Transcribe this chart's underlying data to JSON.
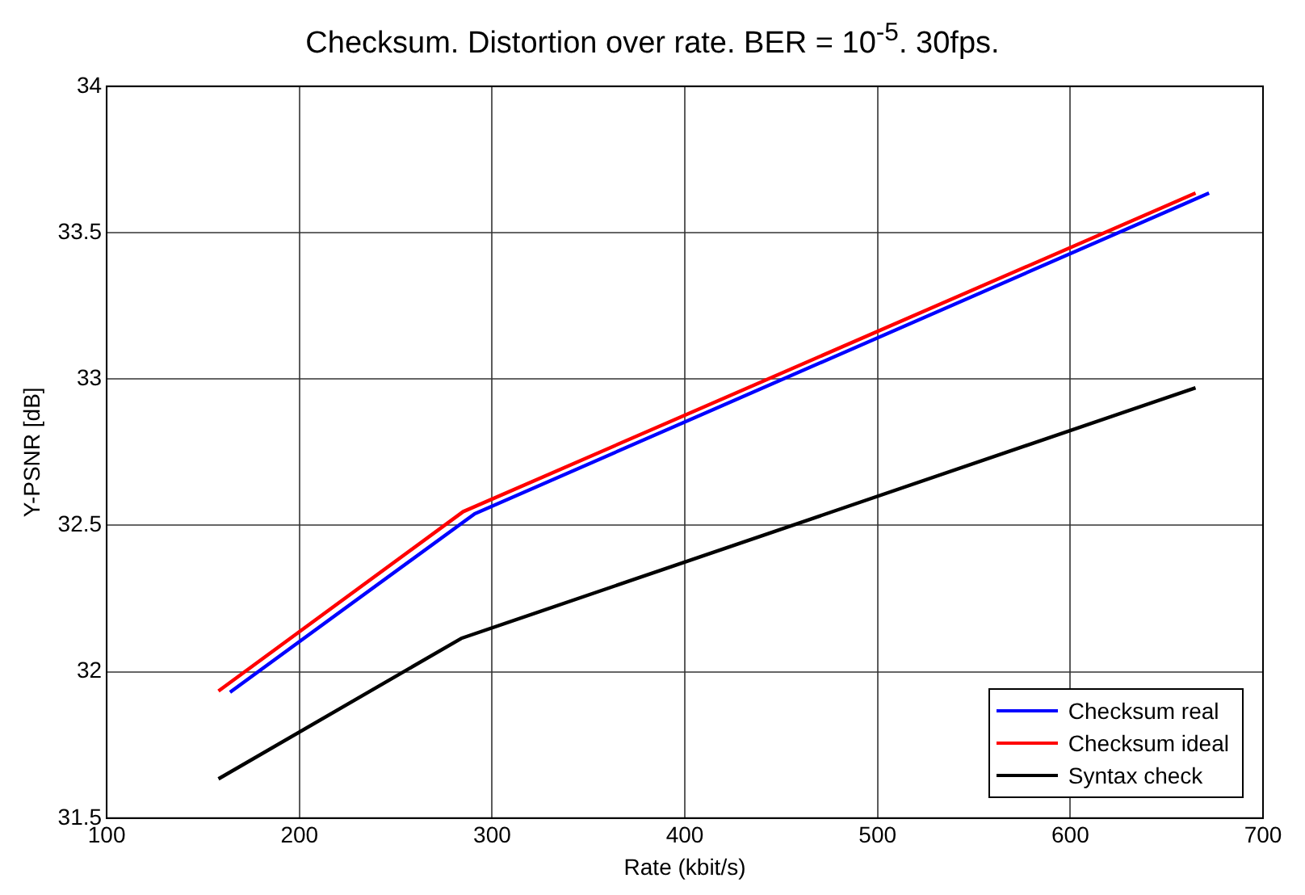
{
  "chart_data": {
    "type": "line",
    "title": "Checksum. Distortion over rate. BER = 10$^{-5}$. 30fps.",
    "xlabel": "Rate (kbit/s)",
    "ylabel": "Y-PSNR [dB]",
    "series": [
      {
        "name": "Checksum real",
        "color": "#0000ff",
        "x": [
          164,
          291,
          672
        ],
        "values": [
          31.93,
          32.54,
          33.635
        ]
      },
      {
        "name": "Checksum ideal",
        "color": "#ff0000",
        "x": [
          158,
          285,
          665
        ],
        "values": [
          31.934,
          32.547,
          33.635
        ]
      },
      {
        "name": "Syntax check",
        "color": "#000000",
        "x": [
          158,
          284,
          665
        ],
        "values": [
          31.634,
          32.114,
          32.97
        ]
      }
    ],
    "xlim": [
      100,
      700
    ],
    "xticks": [
      100,
      200,
      300,
      400,
      500,
      600,
      700
    ],
    "ylim": [
      31.5,
      34
    ],
    "yticks": [
      31.5,
      32,
      32.5,
      33,
      33.5,
      34
    ],
    "grid": true,
    "legend": "bottom right",
    "marker": "none",
    "line_style": "solid"
  }
}
